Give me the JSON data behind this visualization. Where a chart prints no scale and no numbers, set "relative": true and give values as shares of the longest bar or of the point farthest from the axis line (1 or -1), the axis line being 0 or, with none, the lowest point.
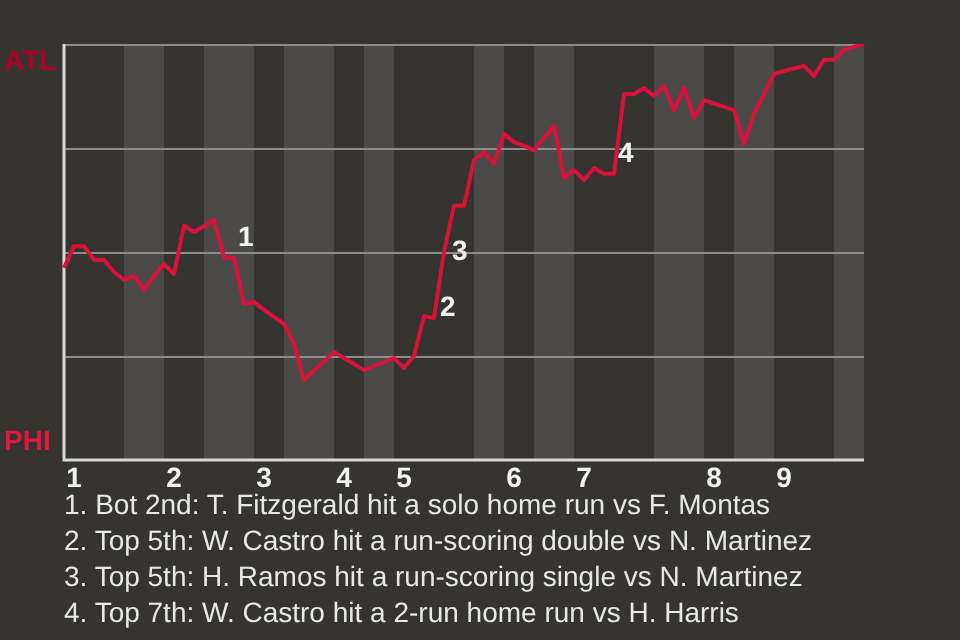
{
  "chart_data": {
    "type": "line",
    "relative": true,
    "categories": [
      null,
      "1",
      null,
      null,
      null,
      null,
      null,
      null,
      null,
      null,
      null,
      "2",
      null,
      null,
      null,
      null,
      null,
      null,
      null,
      null,
      "3",
      null,
      null,
      null,
      null,
      null,
      null,
      null,
      "4",
      null,
      null,
      null,
      null,
      null,
      "5",
      null,
      null,
      null,
      null,
      null,
      null,
      null,
      null,
      null,
      null,
      "6",
      null,
      null,
      null,
      null,
      null,
      null,
      "7",
      null,
      null,
      null,
      null,
      null,
      null,
      null,
      null,
      null,
      null,
      null,
      null,
      "8",
      null,
      null,
      null,
      null,
      null,
      null,
      "9",
      null,
      null,
      null,
      null,
      null,
      null,
      null,
      null
    ],
    "series": [
      {
        "color": "#d8123a",
        "values": [
          0.462,
          0.514,
          0.514,
          0.481,
          0.481,
          0.452,
          0.433,
          0.442,
          0.409,
          0.442,
          0.471,
          0.447,
          0.563,
          0.548,
          0.562,
          0.577,
          0.486,
          0.486,
          0.375,
          0.38,
          0.361,
          0.344,
          0.327,
          0.279,
          0.192,
          0.215,
          0.237,
          0.26,
          0.245,
          0.231,
          0.216,
          0.226,
          0.235,
          0.245,
          0.221,
          0.25,
          0.346,
          0.341,
          0.5,
          0.611,
          0.611,
          0.721,
          0.74,
          0.712,
          0.784,
          0.764,
          0.755,
          0.745,
          0.774,
          0.803,
          0.678,
          0.697,
          0.673,
          0.702,
          0.688,
          0.688,
          0.88,
          0.88,
          0.894,
          0.875,
          0.899,
          0.841,
          0.894,
          0.822,
          0.865,
          0.857,
          0.849,
          0.841,
          0.76,
          0.832,
          0.88,
          0.928,
          0.935,
          0.941,
          0.947,
          0.923,
          0.962,
          0.962,
          0.986,
          0.993,
          1
        ]
      }
    ],
    "grid": "y",
    "marker": "none",
    "line_style": "solid",
    "annotations": [
      {
        "text": "1",
        "y": 0.486
      },
      "2",
      "3",
      {
        "text": "4",
        "y": 0.688
      },
      "ATL",
      "PHI",
      "1. Bot 2nd: T. Fitzgerald hit a solo home run vs F. Montas",
      "2. Top 5th: W. Castro hit a run-scoring double vs N. Martinez",
      "3. Top 5th: H. Ramos hit a run-scoring single vs N. Martinez",
      "4. Top 7th: W. Castro hit a 2-run home run vs H. Harris"
    ]
  }
}
